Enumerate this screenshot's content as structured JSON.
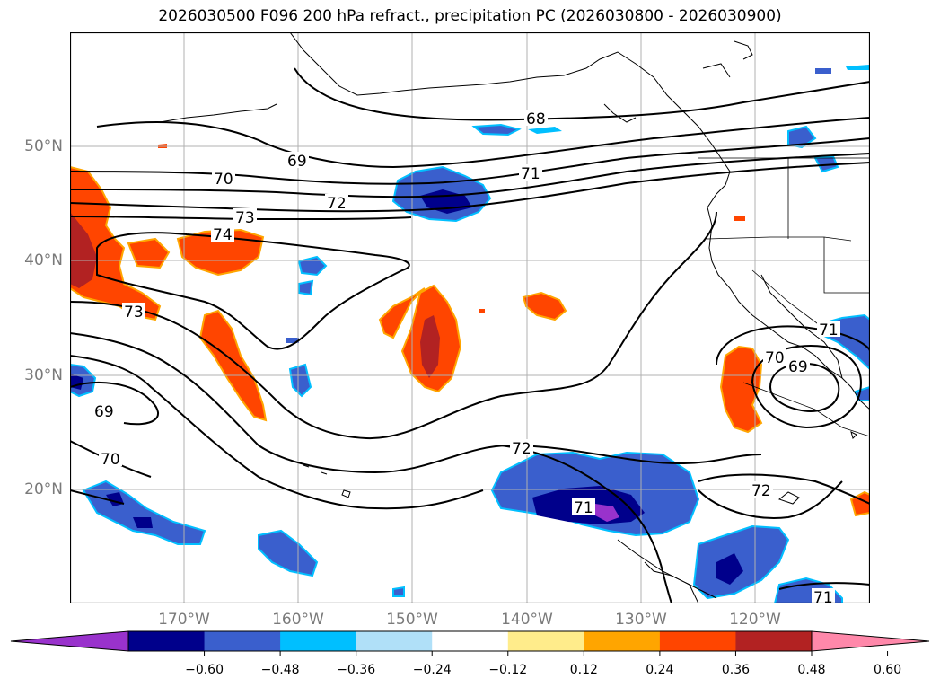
{
  "title": "2026030500 F096 200 hPa refract., precipitation PC (2026030800 - 2026030900)",
  "lat_labels": [
    "50°N",
    "40°N",
    "30°N",
    "20°N"
  ],
  "lon_labels": [
    "170°W",
    "160°W",
    "150°W",
    "140°W",
    "130°W",
    "120°W"
  ],
  "contour_labels": [
    "68",
    "69",
    "70",
    "71",
    "72",
    "73",
    "74",
    "73",
    "69",
    "70",
    "72",
    "71",
    "70",
    "69",
    "71",
    "72",
    "71"
  ],
  "colorbar": {
    "ticks": [
      "−0.60",
      "−0.48",
      "−0.36",
      "−0.24",
      "−0.12",
      "0.12",
      "0.24",
      "0.36",
      "0.48",
      "0.60"
    ],
    "colors": [
      "#9932cc",
      "#00008b",
      "#3a5fcd",
      "#00bfff",
      "#b0e0f8",
      "#ffffff",
      "#ffec8b",
      "#ffa500",
      "#ff4500",
      "#b22222",
      "#ff88aa"
    ]
  },
  "colors": {
    "contour": "#000000",
    "coast": "#000000",
    "grid": "#b0b0b0"
  }
}
